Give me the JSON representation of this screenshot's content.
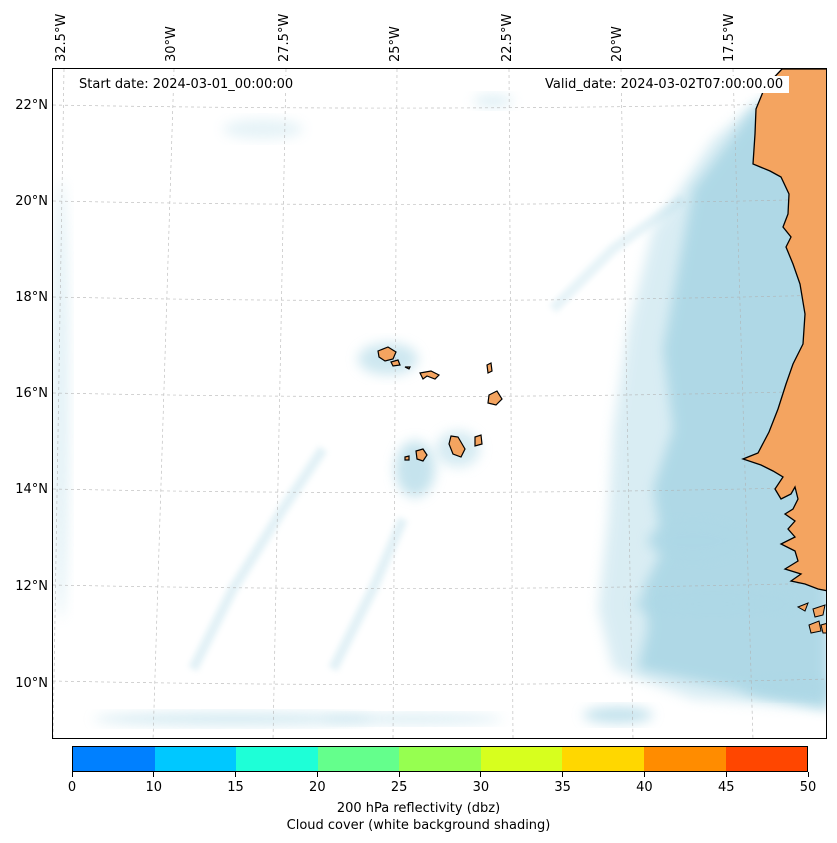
{
  "map": {
    "start_date": "Start date: 2024-03-01_00:00:00",
    "valid_date": "Valid_date: 2024-03-02T07:00:00.00",
    "lon_labels": [
      "32.5°W",
      "30°W",
      "27.5°W",
      "25°W",
      "22.5°W",
      "20°W",
      "17.5°W"
    ],
    "lat_labels": [
      "22°N",
      "20°N",
      "18°N",
      "16°N",
      "14°N",
      "12°N",
      "10°N"
    ],
    "colors": {
      "land": "#f4a460",
      "cloud": "#add8e6",
      "coastline": "#000000",
      "grid": "#b0b0b0"
    }
  },
  "colorbar": {
    "ticks": [
      "0",
      "10",
      "15",
      "20",
      "25",
      "30",
      "35",
      "40",
      "45",
      "50"
    ],
    "colors": [
      "#0080ff",
      "#00c8ff",
      "#1effd7",
      "#64ff8c",
      "#96ff50",
      "#d7ff1e",
      "#ffd700",
      "#ff8c00",
      "#ff4600"
    ],
    "label": "200 hPa reflectivity (dbz)",
    "sublabel": "Cloud cover (white background shading)"
  }
}
